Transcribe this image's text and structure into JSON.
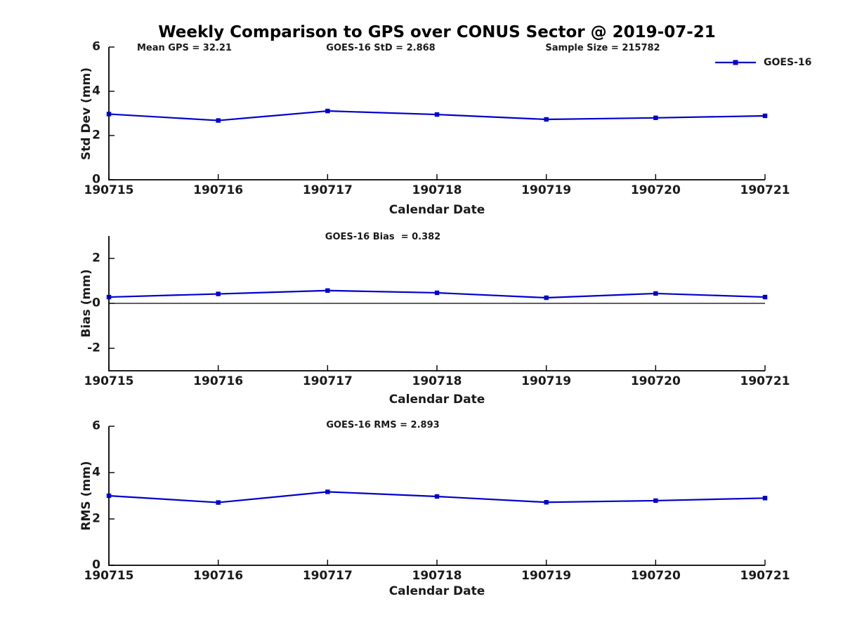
{
  "title": "Weekly Comparison to GPS over CONUS Sector @ 2019-07-21",
  "annotations": {
    "mean_gps": "Mean GPS = 32.21",
    "std": "GOES-16 StD = 2.868",
    "sample_size": "Sample Size = 215782"
  },
  "legend": {
    "label": "GOES-16"
  },
  "colors": {
    "line": "#0000cc",
    "axis": "#000000",
    "zero_line": "#000000",
    "background": "#ffffff"
  },
  "chart_data": [
    {
      "type": "line",
      "name": "std-dev",
      "title": "",
      "ylabel": "Std Dev (mm)",
      "xlabel": "Calendar Date",
      "categories": [
        "190715",
        "190716",
        "190717",
        "190718",
        "190719",
        "190720",
        "190721"
      ],
      "series": [
        {
          "name": "GOES-16",
          "values": [
            2.97,
            2.68,
            3.11,
            2.95,
            2.73,
            2.8,
            2.89
          ]
        }
      ],
      "ylim": [
        0,
        6
      ],
      "yticks": [
        0,
        2,
        4,
        6
      ],
      "zero_line": false,
      "grid": false,
      "marker": "square",
      "legend_position": "top-right"
    },
    {
      "type": "line",
      "name": "bias",
      "title": "GOES-16 Bias  = 0.382",
      "ylabel": "Bias (mm)",
      "xlabel": "Calendar Date",
      "categories": [
        "190715",
        "190716",
        "190717",
        "190718",
        "190719",
        "190720",
        "190721"
      ],
      "series": [
        {
          "name": "GOES-16",
          "values": [
            0.28,
            0.42,
            0.57,
            0.47,
            0.25,
            0.44,
            0.28
          ]
        }
      ],
      "ylim": [
        -3,
        3
      ],
      "yticks": [
        -2,
        0,
        2
      ],
      "zero_line": true,
      "grid": false,
      "marker": "square",
      "legend_position": "none"
    },
    {
      "type": "line",
      "name": "rms",
      "title": "GOES-16 RMS = 2.893",
      "ylabel": "RMS (mm)",
      "xlabel": "Calendar Date",
      "categories": [
        "190715",
        "190716",
        "190717",
        "190718",
        "190719",
        "190720",
        "190721"
      ],
      "series": [
        {
          "name": "GOES-16",
          "values": [
            3.0,
            2.71,
            3.17,
            2.97,
            2.72,
            2.79,
            2.9
          ]
        }
      ],
      "ylim": [
        0,
        6
      ],
      "yticks": [
        0,
        2,
        4,
        6
      ],
      "zero_line": false,
      "grid": false,
      "marker": "square",
      "legend_position": "none"
    }
  ]
}
